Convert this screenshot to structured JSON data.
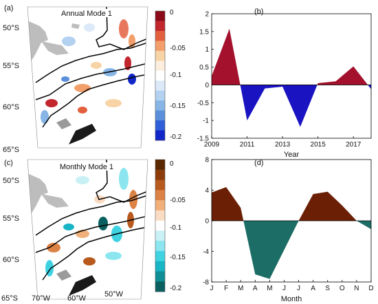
{
  "panels": {
    "a": {
      "label": "(a)",
      "title": "Annual Mode 1"
    },
    "b": {
      "label": "(b)"
    },
    "c": {
      "label": "(c)",
      "title": "Monthly Mode 1"
    },
    "d": {
      "label": "(d)"
    }
  },
  "map_lat_labels": [
    "50°S",
    "55°S",
    "60°S",
    "65°S"
  ],
  "map_lon_labels": [
    "70°W",
    "60°W",
    "50°W"
  ],
  "colorbar_top": {
    "ticks": [
      "0",
      "-0.05",
      "-0.1",
      "-0.15",
      "-0.2"
    ],
    "colors": [
      "#8b0a1a",
      "#c1272d",
      "#e3603f",
      "#f29f6b",
      "#f8d3a6",
      "#fbeede",
      "#ffffff",
      "#dbe9f8",
      "#b3d1f0",
      "#86b5e6",
      "#5a8fdc",
      "#2f5fd8",
      "#1026c8"
    ]
  },
  "colorbar_bottom": {
    "ticks": [
      "0",
      "-0.05",
      "-0.1",
      "-0.15",
      "-0.2"
    ],
    "colors": [
      "#5a2800",
      "#8b3c0a",
      "#b85a1e",
      "#dc8244",
      "#f1b07a",
      "#fadcc2",
      "#ffffff",
      "#c9f1f5",
      "#8be6ef",
      "#3fd3e2",
      "#17b5c6",
      "#0f8e96",
      "#0a6060"
    ]
  },
  "chart_data": [
    {
      "type": "area",
      "panel": "b",
      "x": [
        2009,
        2010,
        2011,
        2012,
        2013,
        2014,
        2015,
        2016,
        2017,
        2018
      ],
      "values": [
        0.25,
        1.58,
        -1.0,
        -0.1,
        -0.05,
        -1.18,
        0.05,
        0.1,
        0.52,
        -0.12
      ],
      "xticks": [
        "2009",
        "2011",
        "2013",
        "2015",
        "2017"
      ],
      "yticks": [
        "2",
        "1.5",
        "1",
        "0.5",
        "0",
        "-0.5",
        "-1",
        "-1.5"
      ],
      "xlabel": "Year",
      "ylim": [
        -1.5,
        2
      ],
      "xlim": [
        2009,
        2018
      ],
      "positive_color": "#a3112c",
      "negative_color": "#1a13c2"
    },
    {
      "type": "area",
      "panel": "d",
      "categories": [
        "J",
        "F",
        "M",
        "A",
        "M",
        "J",
        "J",
        "A",
        "S",
        "O",
        "N",
        "D"
      ],
      "values": [
        3.7,
        4.4,
        1.7,
        -7.0,
        -7.6,
        -3.8,
        0.0,
        3.5,
        3.8,
        2.0,
        0.0,
        -1.1
      ],
      "yticks": [
        "8",
        "4",
        "0",
        "-4",
        "-8"
      ],
      "xlabel": "Month",
      "ylim": [
        -8,
        8
      ],
      "positive_color": "#6b2006",
      "negative_color": "#1c6d66"
    }
  ]
}
